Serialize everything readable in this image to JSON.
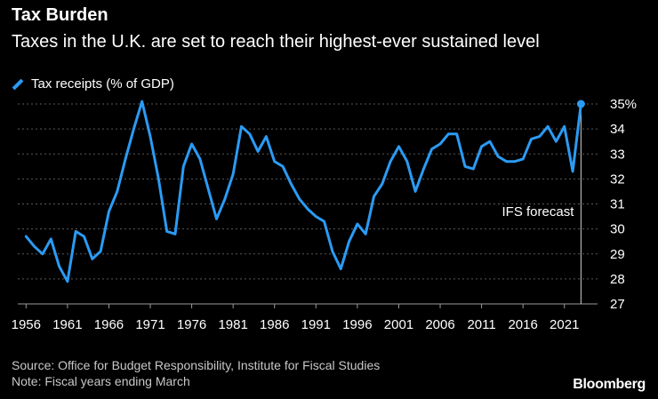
{
  "header": {
    "title": "Tax Burden",
    "subtitle": "Taxes in the U.K. are set to reach their highest-ever sustained level"
  },
  "legend": {
    "label": "Tax receipts (% of GDP)"
  },
  "footer": {
    "source": "Source: Office for Budget Responsibility, Institute for Fiscal Studies",
    "note": "Note: Fiscal years ending March"
  },
  "brand": "Bloomberg",
  "colors": {
    "background": "#000000",
    "line": "#2b9bf4",
    "grid": "#5a5a5a",
    "text": "#ffffff"
  },
  "chart_data": {
    "type": "line",
    "title": "Tax Burden",
    "subtitle": "Taxes in the U.K. are set to reach their highest-ever sustained level",
    "xlabel": "",
    "ylabel": "",
    "xlim": [
      1955,
      2025
    ],
    "ylim": [
      27,
      35
    ],
    "x_ticks": [
      1956,
      1961,
      1966,
      1971,
      1976,
      1981,
      1986,
      1991,
      1996,
      2001,
      2006,
      2011,
      2016,
      2021
    ],
    "y_ticks": [
      27,
      28,
      29,
      30,
      31,
      32,
      33,
      34,
      35
    ],
    "y_top_tick_label": "35%",
    "grid": "horizontal-dotted",
    "legend_position": "top-left",
    "annotation": {
      "text": "IFS forecast",
      "x": 2023
    },
    "series": [
      {
        "name": "Tax receipts (% of GDP)",
        "x": [
          1956,
          1957,
          1958,
          1959,
          1960,
          1961,
          1962,
          1963,
          1964,
          1965,
          1966,
          1967,
          1968,
          1969,
          1970,
          1971,
          1972,
          1973,
          1974,
          1975,
          1976,
          1977,
          1978,
          1979,
          1980,
          1981,
          1982,
          1983,
          1984,
          1985,
          1986,
          1987,
          1988,
          1989,
          1990,
          1991,
          1992,
          1993,
          1994,
          1995,
          1996,
          1997,
          1998,
          1999,
          2000,
          2001,
          2002,
          2003,
          2004,
          2005,
          2006,
          2007,
          2008,
          2009,
          2010,
          2011,
          2012,
          2013,
          2014,
          2015,
          2016,
          2017,
          2018,
          2019,
          2020,
          2021,
          2022,
          2023
        ],
        "values": [
          29.7,
          29.3,
          29.0,
          29.6,
          28.5,
          27.9,
          29.9,
          29.7,
          28.8,
          29.1,
          30.7,
          31.5,
          32.8,
          34.0,
          35.1,
          33.7,
          32.0,
          29.9,
          29.8,
          32.5,
          33.4,
          32.8,
          31.6,
          30.4,
          31.2,
          32.2,
          34.1,
          33.8,
          33.1,
          33.7,
          32.7,
          32.5,
          31.8,
          31.2,
          30.8,
          30.5,
          30.3,
          29.1,
          28.4,
          29.5,
          30.2,
          29.8,
          31.3,
          31.8,
          32.7,
          33.3,
          32.7,
          31.5,
          32.4,
          33.2,
          33.4,
          33.8,
          33.8,
          32.5,
          32.4,
          33.3,
          33.5,
          32.9,
          32.7,
          32.7,
          32.8,
          33.6,
          33.7,
          34.1,
          33.5,
          34.1,
          32.3,
          35.0
        ]
      }
    ]
  }
}
